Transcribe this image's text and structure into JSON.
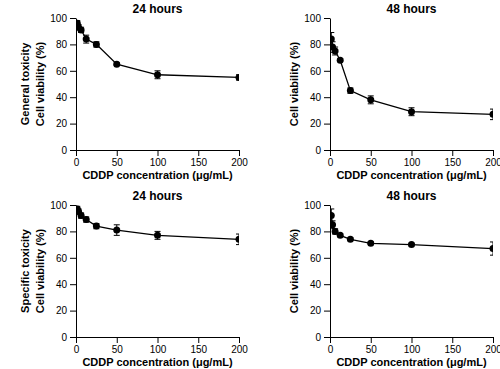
{
  "chart_data": [
    {
      "type": "line",
      "title": "24 hours",
      "annotation": "General toxicity",
      "xlabel": "CDDP concentration (μg/mL)",
      "ylabel": "Cell viability (%)",
      "x": [
        1.5625,
        3.125,
        6.25,
        12.5,
        25,
        50,
        100,
        200
      ],
      "values": [
        96,
        93,
        91,
        84,
        80,
        65,
        57,
        55
      ],
      "errors": [
        2,
        2,
        2,
        3,
        2,
        1,
        3,
        2
      ],
      "xlim": [
        0,
        200
      ],
      "xticks": [
        0,
        50,
        100,
        150,
        200
      ],
      "ylim": [
        0,
        100
      ],
      "yticks": [
        0,
        20,
        40,
        60,
        80,
        100
      ],
      "color": "#000000",
      "marker": "circle",
      "line_style": "solid"
    },
    {
      "type": "line",
      "title": "48 hours",
      "xlabel": "CDDP concentration (μg/mL)",
      "ylabel": "Cell viability (%)",
      "x": [
        1.5625,
        3.125,
        6.25,
        12.5,
        25,
        50,
        100,
        200
      ],
      "values": [
        84,
        78,
        75,
        68,
        45,
        38,
        29,
        27
      ],
      "errors": [
        5,
        4,
        3,
        1,
        2,
        3,
        3,
        4
      ],
      "xlim": [
        0,
        200
      ],
      "xticks": [
        0,
        50,
        100,
        150,
        200
      ],
      "ylim": [
        0,
        100
      ],
      "yticks": [
        0,
        20,
        40,
        60,
        80,
        100
      ],
      "color": "#000000",
      "marker": "circle",
      "line_style": "solid"
    },
    {
      "type": "line",
      "title": "24 hours",
      "annotation": "Specific toxicity",
      "xlabel": "CDDP concentration (μg/mL)",
      "ylabel": "Cell viability (%)",
      "x": [
        1.5625,
        3.125,
        6.25,
        12.5,
        25,
        50,
        100,
        200
      ],
      "values": [
        97,
        95,
        92,
        89,
        84,
        81,
        77,
        74
      ],
      "errors": [
        2,
        2,
        2,
        2,
        2,
        4,
        3,
        4
      ],
      "xlim": [
        0,
        200
      ],
      "xticks": [
        0,
        50,
        100,
        150,
        200
      ],
      "ylim": [
        0,
        100
      ],
      "yticks": [
        0,
        20,
        40,
        60,
        80,
        100
      ],
      "color": "#000000",
      "marker": "circle",
      "line_style": "solid"
    },
    {
      "type": "line",
      "title": "48 hours",
      "xlabel": "CDDP concentration (μg/mL)",
      "ylabel": "Cell viability (%)",
      "x": [
        1.5625,
        3.125,
        6.25,
        12.5,
        25,
        50,
        100,
        200
      ],
      "values": [
        92,
        85,
        80,
        77,
        74,
        71,
        70,
        67
      ],
      "errors": [
        5,
        3,
        2,
        1,
        1,
        1,
        1,
        5
      ],
      "xlim": [
        0,
        200
      ],
      "xticks": [
        0,
        50,
        100,
        150,
        200
      ],
      "ylim": [
        0,
        100
      ],
      "yticks": [
        0,
        20,
        40,
        60,
        80,
        100
      ],
      "color": "#000000",
      "marker": "circle",
      "line_style": "solid"
    }
  ]
}
